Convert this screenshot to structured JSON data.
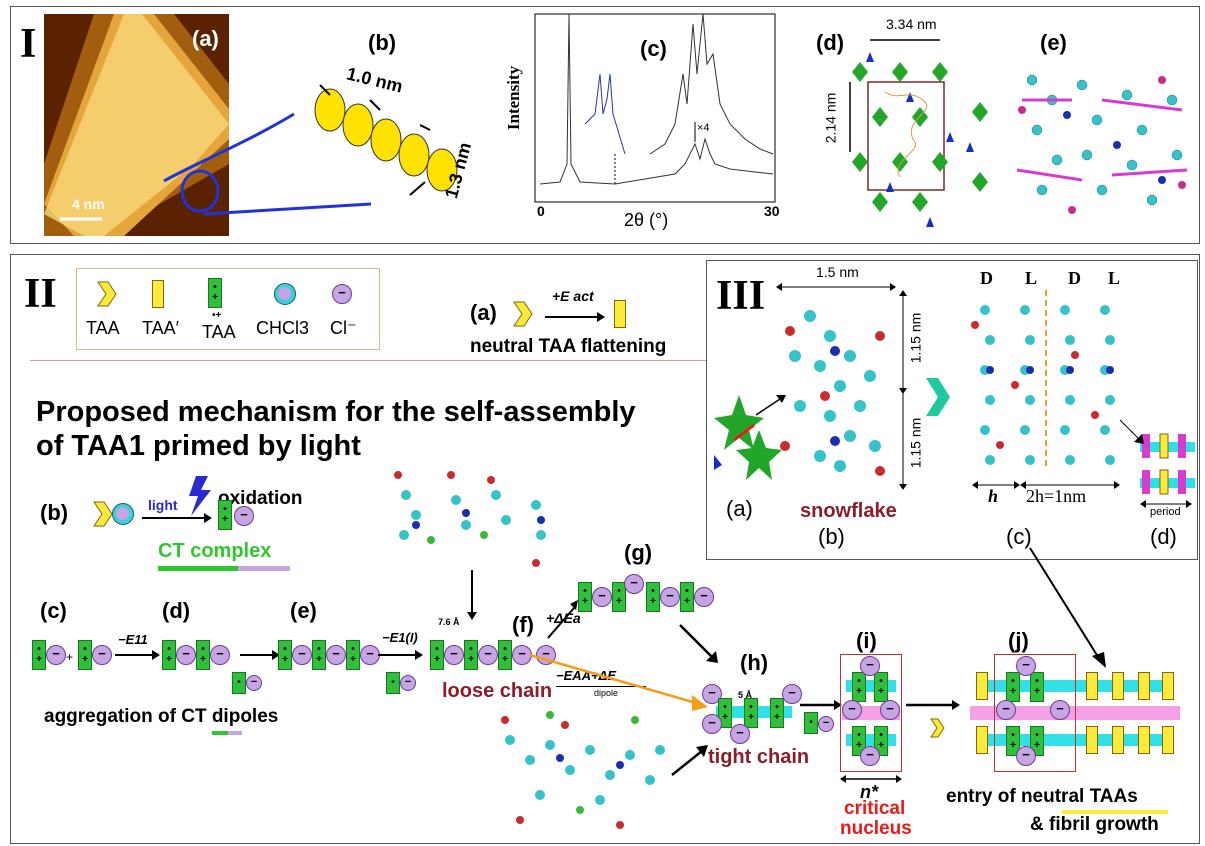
{
  "panel1": {
    "roman": "I",
    "a": {
      "label": "(a)",
      "scale": "4 nm"
    },
    "b": {
      "label": "(b)",
      "d1": "1.0 nm",
      "d2": "1.3 nm"
    },
    "c": {
      "label": "(c)",
      "ylabel": "Intensity",
      "xlabel": "2θ (°)",
      "x0": "0",
      "x1": "30",
      "mult": "×4"
    },
    "d": {
      "label": "(d)",
      "w": "3.34 nm",
      "h": "2.14 nm"
    },
    "e": {
      "label": "(e)"
    }
  },
  "panel2": {
    "roman": "II",
    "legend": {
      "taa": "TAA",
      "taap": "TAA′",
      "taar": "TAA",
      "taar_sup": "•+",
      "chcl3": "CHCl3",
      "cl": "Cl⁻",
      "minus": "−"
    },
    "a": {
      "label": "(a)",
      "energy": "+E act",
      "caption": "neutral TAA flattening"
    },
    "title_line1": "Proposed mechanism for the self-assembly",
    "title_line2": "of TAA1 primed by light",
    "b": {
      "label": "(b)",
      "light": "light",
      "oxidation": "oxidation",
      "ct": "CT complex"
    },
    "c": {
      "label": "(c)",
      "plus": "+"
    },
    "d": {
      "label": "(d)",
      "energy": "−E11"
    },
    "e": {
      "label": "(e)",
      "energy": "−E1(I)"
    },
    "f": {
      "label": "(f)",
      "energy": "+ΔEa",
      "spacing": "7.6 Å",
      "name": "loose chain"
    },
    "g": {
      "label": "(g)"
    },
    "h": {
      "label": "(h)",
      "spacing": "5 Å",
      "name": "tight chain"
    },
    "dipole_energy": "−EAA+ΔE",
    "dipole_sub": "dipole",
    "i": {
      "label": "(i)",
      "n": "n*",
      "name1": "critical",
      "name2": "nucleus"
    },
    "j": {
      "label": "(j)",
      "entry": "entry of neutral TAAs",
      "growth": "&  fibril growth"
    },
    "aggregation": "aggregation of CT dipoles"
  },
  "panel3": {
    "roman": "III",
    "width": "1.5 nm",
    "height1": "1.15 nm",
    "height2": "1.15 nm",
    "chir": [
      "D",
      "L",
      "D",
      "L"
    ],
    "h": "h",
    "h2": "2h=1nm",
    "period": "period",
    "snowflake": "snowflake",
    "labels": [
      "(a)",
      "(b)",
      "(c)",
      "(d)"
    ]
  },
  "chart_data": {
    "type": "line",
    "xlabel": "2θ (°)",
    "ylabel": "Intensity",
    "xlim": [
      0,
      30
    ]
  }
}
